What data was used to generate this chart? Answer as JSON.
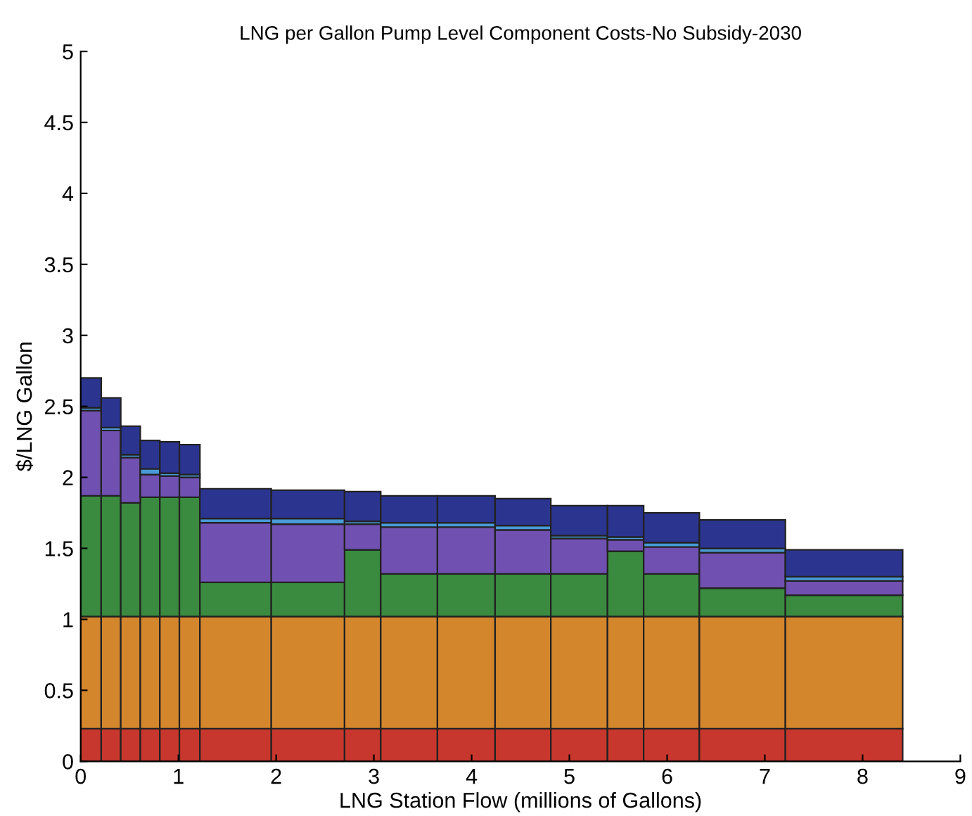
{
  "chart_data": {
    "type": "bar",
    "stacked": true,
    "title": "LNG per Gallon Pump Level Component Costs-No Subsidy-2030",
    "xlabel": "LNG Station Flow (millions of Gallons)",
    "ylabel": "$/LNG Gallon",
    "x": [
      0.105,
      0.31,
      0.51,
      0.71,
      0.91,
      1.115,
      1.585,
      2.325,
      2.885,
      3.36,
      3.945,
      4.525,
      5.1,
      5.575,
      6.045,
      6.77,
      7.81
    ],
    "series": [
      {
        "color": "#c8372d",
        "values": [
          0.23,
          0.23,
          0.23,
          0.23,
          0.23,
          0.23,
          0.23,
          0.23,
          0.23,
          0.23,
          0.23,
          0.23,
          0.23,
          0.23,
          0.23,
          0.23,
          0.23
        ]
      },
      {
        "color": "#d4862d",
        "values": [
          0.79,
          0.79,
          0.79,
          0.79,
          0.79,
          0.79,
          0.79,
          0.79,
          0.79,
          0.79,
          0.79,
          0.79,
          0.79,
          0.79,
          0.79,
          0.79,
          0.79
        ]
      },
      {
        "color": "#3a8a3f",
        "values": [
          0.85,
          0.85,
          0.8,
          0.84,
          0.84,
          0.84,
          0.24,
          0.24,
          0.47,
          0.3,
          0.3,
          0.3,
          0.3,
          0.46,
          0.3,
          0.2,
          0.15
        ]
      },
      {
        "color": "#7050b0",
        "values": [
          0.6,
          0.46,
          0.32,
          0.16,
          0.15,
          0.14,
          0.42,
          0.41,
          0.18,
          0.33,
          0.33,
          0.31,
          0.25,
          0.08,
          0.19,
          0.25,
          0.1
        ]
      },
      {
        "color": "#4a9ad8",
        "values": [
          0.02,
          0.02,
          0.02,
          0.04,
          0.02,
          0.02,
          0.03,
          0.04,
          0.02,
          0.03,
          0.03,
          0.03,
          0.02,
          0.02,
          0.03,
          0.03,
          0.03
        ]
      },
      {
        "color": "#2b3590",
        "values": [
          0.21,
          0.21,
          0.2,
          0.2,
          0.22,
          0.21,
          0.21,
          0.2,
          0.21,
          0.19,
          0.19,
          0.19,
          0.21,
          0.22,
          0.21,
          0.2,
          0.19
        ]
      }
    ],
    "xlim": [
      0,
      9
    ],
    "xticks": [
      0,
      1,
      2,
      3,
      4,
      5,
      6,
      7,
      8,
      9
    ],
    "ylim": [
      0,
      5
    ],
    "yticks": [
      0,
      0.5,
      1,
      1.5,
      2,
      2.5,
      3,
      3.5,
      4,
      4.5,
      5
    ],
    "grid": false,
    "legend": false
  }
}
